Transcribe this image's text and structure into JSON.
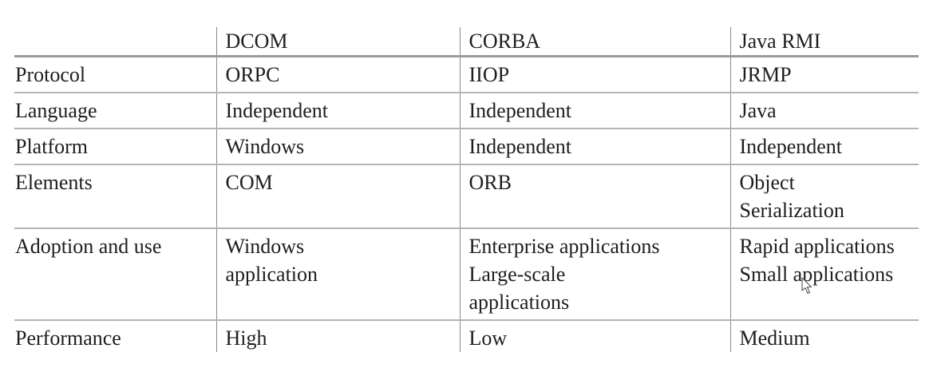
{
  "table": {
    "headers": [
      "",
      "DCOM",
      "CORBA",
      "Java RMI"
    ],
    "rows": [
      {
        "label": "Protocol",
        "cells": [
          [
            "ORPC"
          ],
          [
            "IIOP"
          ],
          [
            "JRMP"
          ]
        ]
      },
      {
        "label": "Language",
        "cells": [
          [
            "Independent"
          ],
          [
            "Independent"
          ],
          [
            "Java"
          ]
        ]
      },
      {
        "label": "Platform",
        "cells": [
          [
            "Windows"
          ],
          [
            "Independent"
          ],
          [
            "Independent"
          ]
        ]
      },
      {
        "label": "Elements",
        "cells": [
          [
            "COM"
          ],
          [
            "ORB"
          ],
          [
            "Object",
            "Serialization"
          ]
        ]
      },
      {
        "label": "Adoption and use",
        "cells": [
          [
            "Windows",
            "application"
          ],
          [
            "Enterprise applications",
            "Large-scale",
            "applications"
          ],
          [
            "Rapid applications",
            "Small applications"
          ]
        ]
      },
      {
        "label": "Performance",
        "cells": [
          [
            "High"
          ],
          [
            "Low"
          ],
          [
            "Medium"
          ]
        ]
      }
    ]
  },
  "cursor": {
    "icon": "mouse-pointer-icon"
  }
}
